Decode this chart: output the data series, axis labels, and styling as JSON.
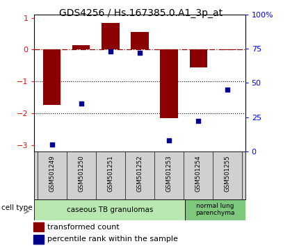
{
  "title": "GDS4256 / Hs.167385.0.A1_3p_at",
  "samples": [
    "GSM501249",
    "GSM501250",
    "GSM501251",
    "GSM501252",
    "GSM501253",
    "GSM501254",
    "GSM501255"
  ],
  "transformed_counts": [
    -1.75,
    0.15,
    0.85,
    0.55,
    -2.15,
    -0.55,
    -0.02
  ],
  "percentile_ranks": [
    5,
    35,
    73,
    72,
    8,
    22,
    45
  ],
  "ylim_left": [
    -3.2,
    1.1
  ],
  "ylim_right": [
    0,
    100
  ],
  "yticks_left": [
    -3,
    -2,
    -1,
    0,
    1
  ],
  "yticks_right": [
    0,
    25,
    50,
    75,
    100
  ],
  "ytick_labels_right": [
    "0",
    "25",
    "50",
    "75",
    "100%"
  ],
  "dotted_lines": [
    -1,
    -2
  ],
  "bar_color": "#8B0000",
  "point_color": "#00008B",
  "cell_groups": [
    {
      "label": "caseous TB granulomas",
      "n_samples": 5,
      "color": "#b8e8b0"
    },
    {
      "label": "normal lung\nparenchyma",
      "n_samples": 2,
      "color": "#7ec87e"
    }
  ],
  "bg_color": "#ffffff",
  "title_fontsize": 10,
  "tick_fontsize": 8,
  "legend_fontsize": 8
}
